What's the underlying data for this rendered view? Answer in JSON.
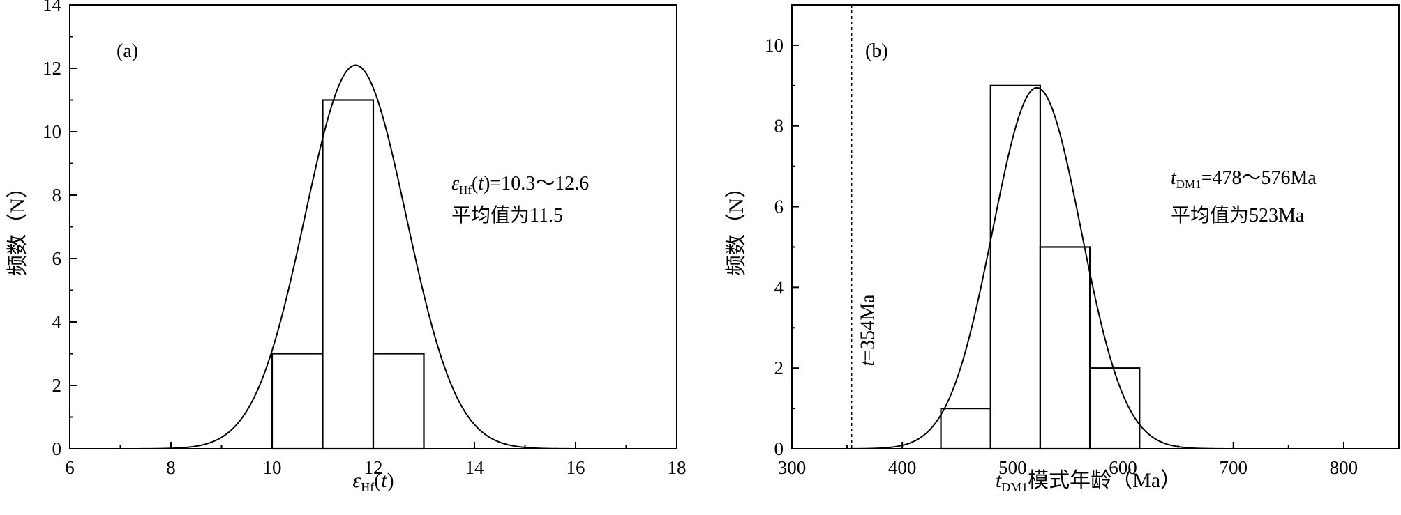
{
  "chart_data": [
    {
      "type": "bar",
      "panel_label": "(a)",
      "xlabel": "εHf(t)",
      "ylabel": "频数（N）",
      "xlim": [
        6,
        18
      ],
      "ylim": [
        0,
        14
      ],
      "x_ticks": [
        6,
        8,
        10,
        12,
        14,
        16,
        18
      ],
      "y_ticks": [
        0,
        2,
        4,
        6,
        8,
        10,
        12,
        14
      ],
      "bins": [
        {
          "x0": 10,
          "x1": 11,
          "value": 3
        },
        {
          "x0": 11,
          "x1": 12,
          "value": 11
        },
        {
          "x0": 12,
          "x1": 13,
          "value": 3
        }
      ],
      "fit_curve": {
        "mean": 11.65,
        "sd": 1.0,
        "peak": 12.1
      },
      "annotations": [
        "εHf(t)=10.3～12.6",
        "平均值为11.5"
      ]
    },
    {
      "type": "bar",
      "panel_label": "(b)",
      "xlabel": "tDM1模式年龄（Ma）",
      "ylabel": "频数（N）",
      "xlim": [
        300,
        850
      ],
      "ylim": [
        0,
        11
      ],
      "x_ticks": [
        300,
        400,
        500,
        600,
        700,
        800
      ],
      "y_ticks": [
        0,
        2,
        4,
        6,
        8,
        10
      ],
      "bins": [
        {
          "x0": 435,
          "x1": 480,
          "value": 1
        },
        {
          "x0": 480,
          "x1": 525,
          "value": 9
        },
        {
          "x0": 525,
          "x1": 570,
          "value": 5
        },
        {
          "x0": 570,
          "x1": 615,
          "value": 2
        }
      ],
      "fit_curve": {
        "mean": 522,
        "sd": 40,
        "peak": 8.95
      },
      "reference_line": {
        "x": 354,
        "label": "t=354Ma"
      },
      "annotations": [
        "tDM1=478～576Ma",
        "平均值为523Ma"
      ]
    }
  ]
}
